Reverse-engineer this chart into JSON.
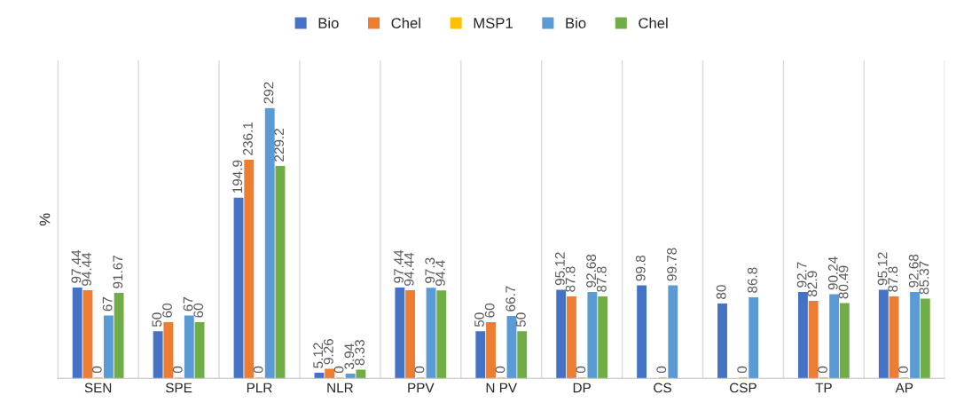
{
  "chart_data": {
    "type": "bar",
    "ylabel": "%",
    "categories": [
      "SEN",
      "SPE",
      "PLR",
      "NLR",
      "PPV",
      "N PV",
      "DP",
      "CS",
      "CSP",
      "TP",
      "AP"
    ],
    "series": [
      {
        "name": "Bio",
        "color": "#4472c4",
        "values": [
          97.44,
          50,
          194.9,
          5.12,
          97.44,
          50,
          95.12,
          99.8,
          80,
          92.7,
          95.12
        ]
      },
      {
        "name": "Chel",
        "color": "#ed7d31",
        "values": [
          94.44,
          60,
          236.1,
          9.26,
          94.44,
          60,
          87.8,
          null,
          null,
          82.9,
          87.8
        ]
      },
      {
        "name": "MSP1",
        "color": "#ffc000",
        "values": [
          0,
          0,
          0,
          0,
          0,
          0,
          0,
          0,
          0,
          0,
          0
        ]
      },
      {
        "name": "Bio",
        "color": "#5b9bd5",
        "values": [
          67,
          67,
          292,
          3.94,
          97.3,
          66.7,
          92.68,
          99.78,
          86.8,
          90.24,
          92.68
        ]
      },
      {
        "name": "Chel",
        "color": "#70ad47",
        "values": [
          91.67,
          60,
          229.2,
          8.33,
          94.4,
          50,
          87.8,
          null,
          null,
          80.49,
          85.37
        ]
      }
    ],
    "data_labels": true,
    "legend": "top",
    "grid": "x",
    "tick_labels": "x"
  }
}
